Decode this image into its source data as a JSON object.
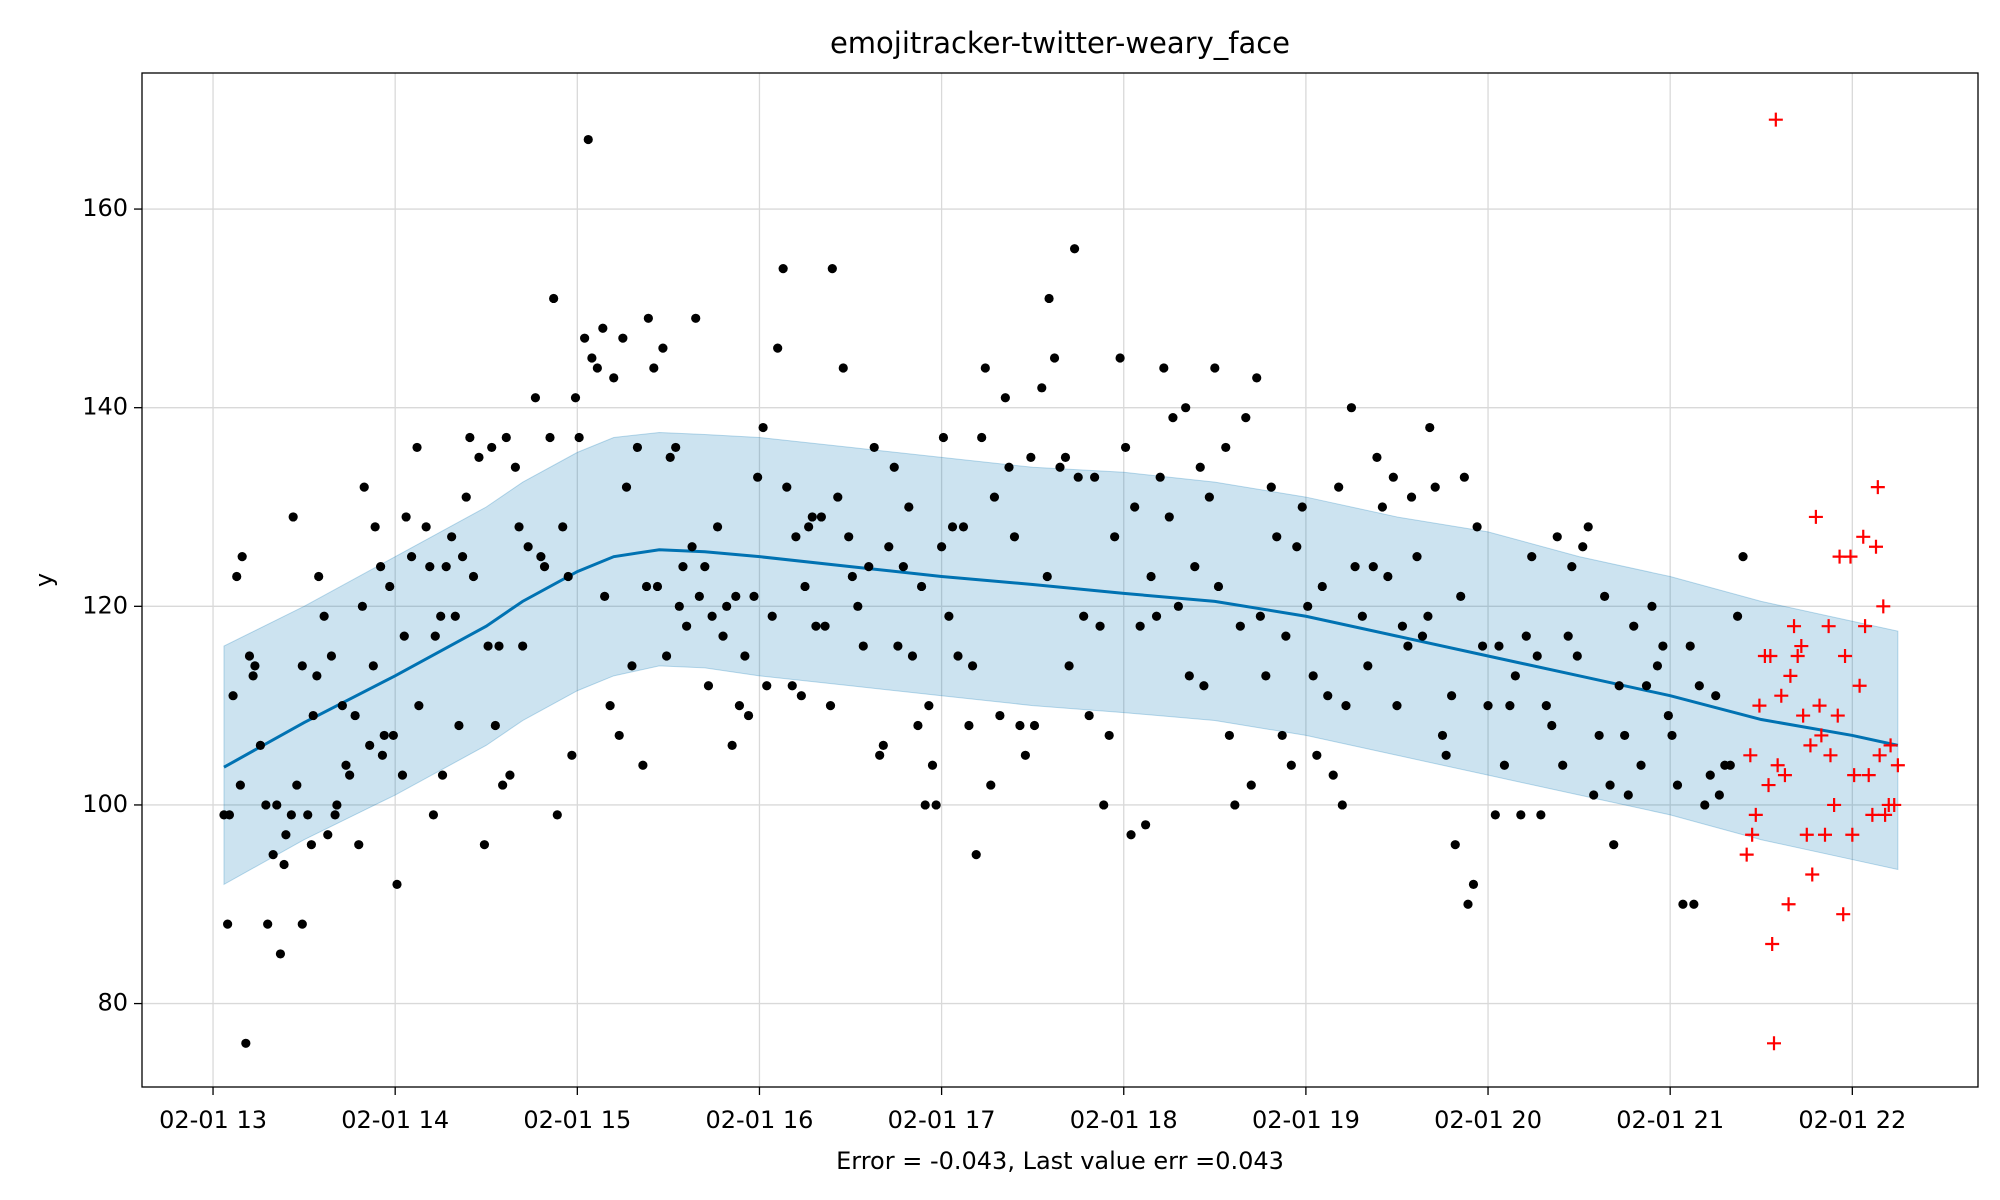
{
  "chart_data": {
    "type": "forecast",
    "title": "emojitracker-twitter-weary_face",
    "xlabel": "Error = -0.043, Last value err =0.043",
    "ylabel": "y",
    "xlim": [
      12.61,
      22.69
    ],
    "ylim": [
      71.6,
      173.7
    ],
    "xticks": [
      {
        "value": 13,
        "label": "02-01 13"
      },
      {
        "value": 14,
        "label": "02-01 14"
      },
      {
        "value": 15,
        "label": "02-01 15"
      },
      {
        "value": 16,
        "label": "02-01 16"
      },
      {
        "value": 17,
        "label": "02-01 17"
      },
      {
        "value": 18,
        "label": "02-01 18"
      },
      {
        "value": 19,
        "label": "02-01 19"
      },
      {
        "value": 20,
        "label": "02-01 20"
      },
      {
        "value": 21,
        "label": "02-01 21"
      },
      {
        "value": 22,
        "label": "02-01 22"
      }
    ],
    "yticks": [
      80,
      100,
      120,
      140,
      160
    ],
    "grid": true,
    "forecast": {
      "color": "#0072b2",
      "x": [
        13.06,
        13.5,
        14,
        14.5,
        14.7,
        15,
        15.2,
        15.45,
        15.7,
        16,
        16.5,
        17,
        17.5,
        18,
        18.5,
        19,
        19.5,
        20,
        20.5,
        21,
        21.5,
        22,
        22.25
      ],
      "yhat": [
        103.8,
        108.3,
        113,
        118,
        120.5,
        123.5,
        125,
        125.7,
        125.5,
        125,
        124,
        123,
        122.2,
        121.3,
        120.5,
        119,
        117,
        115,
        113,
        111,
        108.6,
        107,
        106
      ],
      "yhat_lower": [
        92,
        96.5,
        101,
        106,
        108.5,
        111.5,
        113,
        114,
        113.8,
        113,
        112,
        111,
        110,
        109.3,
        108.5,
        107,
        105,
        103,
        101,
        99,
        96.5,
        94.5,
        93.5
      ],
      "yhat_upper": [
        116,
        120,
        125,
        130,
        132.5,
        135.5,
        137,
        137.5,
        137.3,
        137,
        136,
        135,
        134,
        133.5,
        132.5,
        131,
        129,
        127.5,
        125,
        123,
        120.5,
        118.5,
        117.5
      ]
    },
    "observed": {
      "color": "#000000",
      "x": [
        13.06,
        13.09,
        13.08,
        13.11,
        13.13,
        13.16,
        13.18,
        13.15,
        13.2,
        13.23,
        13.22,
        13.26,
        13.29,
        13.3,
        13.33,
        13.35,
        13.37,
        13.39,
        13.4,
        13.43,
        13.44,
        13.46,
        13.49,
        13.49,
        13.52,
        13.54,
        13.55,
        13.57,
        13.58,
        13.61,
        13.63,
        13.65,
        13.67,
        13.68,
        13.71,
        13.73,
        13.75,
        13.78,
        13.8,
        13.82,
        13.83,
        13.86,
        13.88,
        13.89,
        13.92,
        13.93,
        13.94,
        13.97,
        13.99,
        14.01,
        14.04,
        14.05,
        14.06,
        14.09,
        14.12,
        14.13,
        14.17,
        14.19,
        14.21,
        14.22,
        14.25,
        14.26,
        14.28,
        14.31,
        14.33,
        14.35,
        14.37,
        14.39,
        14.41,
        14.43,
        14.46,
        14.49,
        14.51,
        14.53,
        14.55,
        14.57,
        14.59,
        14.61,
        14.63,
        14.66,
        14.68,
        14.7,
        14.73,
        14.77,
        14.8,
        14.82,
        14.85,
        14.87,
        14.89,
        14.92,
        14.95,
        14.97,
        14.99,
        15.01,
        15.04,
        15.06,
        15.08,
        15.11,
        15.14,
        15.15,
        15.18,
        15.2,
        15.23,
        15.25,
        15.27,
        15.3,
        15.33,
        15.36,
        15.38,
        15.39,
        15.42,
        15.44,
        15.47,
        15.49,
        15.51,
        15.54,
        15.56,
        15.58,
        15.6,
        15.63,
        15.65,
        15.67,
        15.7,
        15.72,
        15.74,
        15.77,
        15.8,
        15.82,
        15.85,
        15.87,
        15.89,
        15.92,
        15.94,
        15.97,
        15.99,
        16.02,
        16.04,
        16.07,
        16.1,
        16.13,
        16.15,
        16.18,
        16.2,
        16.23,
        16.25,
        16.27,
        16.29,
        16.31,
        16.34,
        16.36,
        16.39,
        16.4,
        16.43,
        16.46,
        16.49,
        16.51,
        16.54,
        16.57,
        16.6,
        16.63,
        16.66,
        16.68,
        16.71,
        16.74,
        16.76,
        16.79,
        16.82,
        16.84,
        16.87,
        16.89,
        16.91,
        16.93,
        16.95,
        16.97,
        17.0,
        17.01,
        17.04,
        17.06,
        17.09,
        17.12,
        17.15,
        17.17,
        17.19,
        17.22,
        17.24,
        17.27,
        17.29,
        17.32,
        17.35,
        17.37,
        17.4,
        17.43,
        17.46,
        17.49,
        17.51,
        17.55,
        17.58,
        17.59,
        17.62,
        17.65,
        17.68,
        17.7,
        17.73,
        17.75,
        17.78,
        17.81,
        17.84,
        17.87,
        17.89,
        17.92,
        17.95,
        17.98,
        18.01,
        18.04,
        18.06,
        18.09,
        18.12,
        18.15,
        18.18,
        18.2,
        18.22,
        18.25,
        18.27,
        18.3,
        18.34,
        18.36,
        18.39,
        18.42,
        18.44,
        18.47,
        18.5,
        18.52,
        18.56,
        18.58,
        18.61,
        18.64,
        18.67,
        18.7,
        18.73,
        18.75,
        18.78,
        18.81,
        18.84,
        18.87,
        18.89,
        18.92,
        18.95,
        18.98,
        19.01,
        19.04,
        19.06,
        19.09,
        19.12,
        19.15,
        19.18,
        19.2,
        19.22,
        19.25,
        19.27,
        19.31,
        19.34,
        19.37,
        19.39,
        19.42,
        19.45,
        19.48,
        19.5,
        19.53,
        19.56,
        19.58,
        19.61,
        19.64,
        19.67,
        19.68,
        19.71,
        19.75,
        19.77,
        19.8,
        19.82,
        19.85,
        19.87,
        19.89,
        19.92,
        19.94,
        19.97,
        20.0,
        20.04,
        20.06,
        20.09,
        20.12,
        20.15,
        20.18,
        20.21,
        20.24,
        20.27,
        20.29,
        20.32,
        20.35,
        20.38,
        20.41,
        20.44,
        20.46,
        20.49,
        20.52,
        20.55,
        20.58,
        20.61,
        20.64,
        20.67,
        20.69,
        20.72,
        20.75,
        20.77,
        20.8,
        20.84,
        20.87,
        20.9,
        20.93,
        20.96,
        20.99,
        21.01,
        21.04,
        21.07,
        21.11,
        21.13,
        21.16,
        21.19,
        21.22,
        21.25,
        21.27,
        21.3,
        21.33,
        21.37,
        21.4
      ],
      "y": [
        99,
        99,
        88,
        111,
        123,
        125,
        76,
        102,
        115,
        114,
        113,
        106,
        100,
        88,
        95,
        100,
        85,
        94,
        97,
        99,
        129,
        102,
        114,
        88,
        99,
        96,
        109,
        113,
        123,
        119,
        97,
        115,
        99,
        100,
        110,
        104,
        103,
        109,
        96,
        120,
        132,
        106,
        114,
        128,
        124,
        105,
        107,
        122,
        107,
        92,
        103,
        117,
        129,
        125,
        136,
        110,
        128,
        124,
        99,
        117,
        119,
        103,
        124,
        127,
        119,
        108,
        125,
        131,
        137,
        123,
        135,
        96,
        116,
        136,
        108,
        116,
        102,
        137,
        103,
        134,
        128,
        116,
        126,
        141,
        125,
        124,
        137,
        151,
        99,
        128,
        123,
        105,
        141,
        137,
        147,
        167,
        145,
        144,
        148,
        121,
        110,
        143,
        107,
        147,
        132,
        114,
        136,
        104,
        122,
        149,
        144,
        122,
        146,
        115,
        135,
        136,
        120,
        124,
        118,
        126,
        149,
        121,
        124,
        112,
        119,
        128,
        117,
        120,
        106,
        121,
        110,
        115,
        109,
        121,
        133,
        138,
        112,
        119,
        146,
        154,
        132,
        112,
        127,
        111,
        122,
        128,
        129,
        118,
        129,
        118,
        110,
        154,
        131,
        144,
        127,
        123,
        120,
        116,
        124,
        136,
        105,
        106,
        126,
        134,
        116,
        124,
        130,
        115,
        108,
        122,
        100,
        110,
        104,
        100,
        126,
        137,
        119,
        128,
        115,
        128,
        108,
        114,
        95,
        137,
        144,
        102,
        131,
        109,
        141,
        134,
        127,
        108,
        105,
        135,
        108,
        142,
        123,
        151,
        145,
        134,
        135,
        114,
        156,
        133,
        119,
        109,
        133,
        118,
        100,
        107,
        127,
        145,
        136,
        97,
        130,
        118,
        98,
        123,
        119,
        133,
        144,
        129,
        139,
        120,
        140,
        113,
        124,
        134,
        112,
        131,
        144,
        122,
        136,
        107,
        100,
        118,
        139,
        102,
        143,
        119,
        113,
        132,
        127,
        107,
        117,
        104,
        126,
        130,
        120,
        113,
        105,
        122,
        111,
        103,
        132,
        100,
        110,
        140,
        124,
        119,
        114,
        124,
        135,
        130,
        123,
        133,
        110,
        118,
        116,
        131,
        125,
        117,
        119,
        138,
        132,
        107,
        105,
        111,
        96,
        121,
        133,
        90,
        92,
        128,
        116,
        110,
        99,
        116,
        104,
        110,
        113,
        99,
        117,
        125,
        115,
        99,
        110,
        108,
        127,
        104,
        117,
        124,
        115,
        126,
        128,
        101,
        107,
        121,
        102,
        96,
        112,
        107,
        101,
        118,
        104,
        112,
        120,
        114,
        116,
        109,
        107,
        102,
        90,
        116,
        90,
        112,
        100,
        103,
        111,
        101,
        104,
        104,
        119,
        125
      ]
    },
    "test": {
      "color": "#ff0000",
      "x": [
        21.44,
        21.42,
        21.45,
        21.47,
        21.49,
        21.52,
        21.54,
        21.55,
        21.56,
        21.57,
        21.59,
        21.61,
        21.63,
        21.65,
        21.66,
        21.68,
        21.7,
        21.72,
        21.73,
        21.75,
        21.77,
        21.78,
        21.8,
        21.82,
        21.83,
        21.85,
        21.87,
        21.88,
        21.9,
        21.92,
        21.93,
        21.95,
        21.96,
        21.99,
        22.0,
        22.01,
        22.04,
        22.06,
        22.07,
        22.09,
        22.11,
        22.13,
        22.14,
        22.15,
        22.17,
        22.18,
        22.2,
        22.21,
        22.23,
        22.25,
        21.58
      ],
      "y": [
        105,
        95,
        97,
        99,
        110,
        115,
        102,
        115,
        86,
        76,
        104,
        111,
        103,
        90,
        113,
        118,
        115,
        116,
        109,
        97,
        106,
        93,
        129,
        110,
        107,
        97,
        118,
        105,
        100,
        109,
        125,
        89,
        115,
        125,
        97,
        103,
        112,
        127,
        118,
        103,
        99,
        126,
        132,
        105,
        120,
        99,
        100,
        106,
        100,
        104,
        169
      ]
    }
  }
}
